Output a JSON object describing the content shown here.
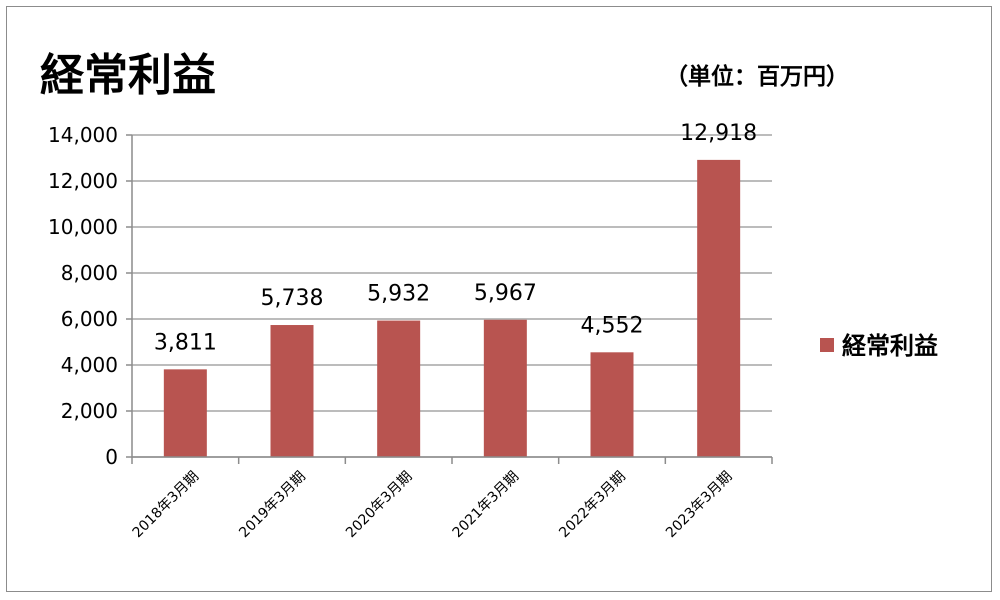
{
  "chart_data": {
    "type": "bar",
    "title": "経常利益",
    "unit_label": "（単位：百万円）",
    "categories": [
      "2018年3月期",
      "2019年3月期",
      "2020年3月期",
      "2021年3月期",
      "2022年3月期",
      "2023年3月期"
    ],
    "series": [
      {
        "name": "経常利益",
        "values": [
          3811,
          5738,
          5932,
          5967,
          4552,
          12918
        ],
        "color": "#b85450"
      }
    ],
    "data_labels": [
      "3,811",
      "5,738",
      "5,932",
      "5,967",
      "4,552",
      "12,918"
    ],
    "ylim": [
      0,
      14000
    ],
    "yticks": [
      "0",
      "2,000",
      "4,000",
      "6,000",
      "8,000",
      "10,000",
      "12,000",
      "14,000"
    ],
    "grid": true,
    "legend_position": "right",
    "gridline_color": "#a6a6a6"
  }
}
